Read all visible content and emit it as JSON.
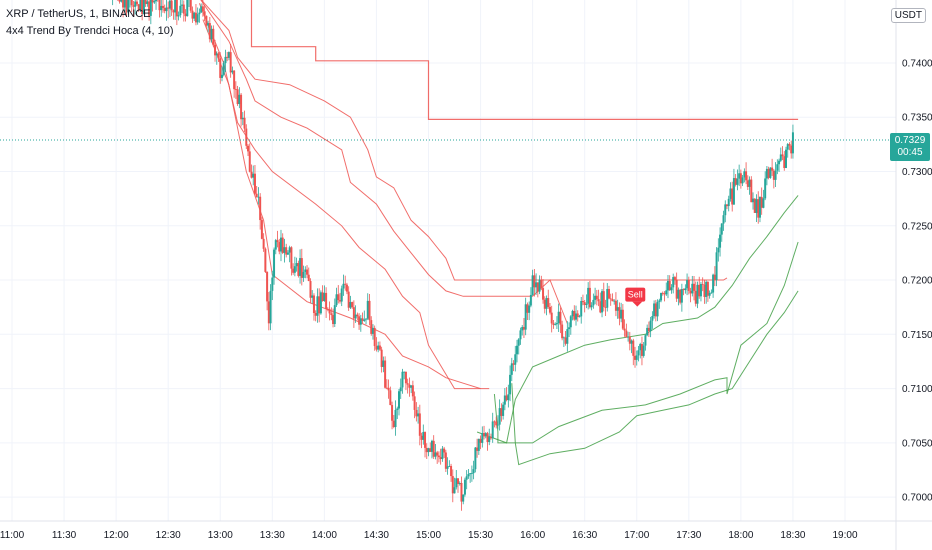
{
  "header": {
    "symbol_line": "XRP / TetherUS, 1, BINANCE",
    "indicator_line": "4x4 Trend By Trendci Hoca (4, 10)"
  },
  "unit_label": "USDT",
  "last_price": {
    "value": "0.7329",
    "countdown": "00:45"
  },
  "colors": {
    "up": "#26a69a",
    "down": "#ef5350",
    "resistance": "#ef5350",
    "support": "#43a047",
    "sell_badge": "#f23645",
    "last_price_line": "#26a69a"
  },
  "chart_data": {
    "type": "candlestick",
    "y_ticks": [
      "0.7000",
      "0.7050",
      "0.7100",
      "0.7150",
      "0.7200",
      "0.7250",
      "0.7300",
      "0.7350",
      "0.7400"
    ],
    "y_range": [
      0.6978,
      0.7458
    ],
    "x_ticks": [
      "11:00",
      "11:30",
      "12:00",
      "12:30",
      "13:00",
      "13:30",
      "14:00",
      "14:30",
      "15:00",
      "15:30",
      "16:00",
      "16:30",
      "17:00",
      "17:30",
      "18:00",
      "18:30",
      "19:00"
    ],
    "signal": {
      "label": "Sell",
      "time": "16:58",
      "price": 0.7182
    },
    "price_path": [
      [
        "11:58",
        0.746
      ],
      [
        "12:10",
        0.7455
      ],
      [
        "12:30",
        0.7452
      ],
      [
        "12:45",
        0.745
      ],
      [
        "12:55",
        0.743
      ],
      [
        "13:00",
        0.7395
      ],
      [
        "13:05",
        0.741
      ],
      [
        "13:10",
        0.737
      ],
      [
        "13:15",
        0.732
      ],
      [
        "13:20",
        0.729
      ],
      [
        "13:25",
        0.723
      ],
      [
        "13:28",
        0.716
      ],
      [
        "13:32",
        0.724
      ],
      [
        "13:40",
        0.722
      ],
      [
        "13:48",
        0.721
      ],
      [
        "13:55",
        0.7175
      ],
      [
        "14:00",
        0.7185
      ],
      [
        "14:05",
        0.7165
      ],
      [
        "14:10",
        0.7195
      ],
      [
        "14:15",
        0.718
      ],
      [
        "14:20",
        0.716
      ],
      [
        "14:25",
        0.717
      ],
      [
        "14:30",
        0.7145
      ],
      [
        "14:35",
        0.711
      ],
      [
        "14:40",
        0.707
      ],
      [
        "14:45",
        0.712
      ],
      [
        "14:50",
        0.71
      ],
      [
        "14:55",
        0.706
      ],
      [
        "15:00",
        0.705
      ],
      [
        "15:05",
        0.704
      ],
      [
        "15:10",
        0.703
      ],
      [
        "15:15",
        0.701
      ],
      [
        "15:20",
        0.7
      ],
      [
        "15:25",
        0.703
      ],
      [
        "15:30",
        0.705
      ],
      [
        "15:35",
        0.706
      ],
      [
        "15:40",
        0.7065
      ],
      [
        "15:45",
        0.7095
      ],
      [
        "15:50",
        0.713
      ],
      [
        "15:55",
        0.716
      ],
      [
        "16:00",
        0.72
      ],
      [
        "16:05",
        0.719
      ],
      [
        "16:10",
        0.717
      ],
      [
        "16:15",
        0.716
      ],
      [
        "16:20",
        0.715
      ],
      [
        "16:25",
        0.717
      ],
      [
        "16:30",
        0.718
      ],
      [
        "16:35",
        0.7185
      ],
      [
        "16:40",
        0.718
      ],
      [
        "16:45",
        0.719
      ],
      [
        "16:50",
        0.717
      ],
      [
        "16:55",
        0.715
      ],
      [
        "17:00",
        0.7125
      ],
      [
        "17:05",
        0.715
      ],
      [
        "17:10",
        0.717
      ],
      [
        "17:15",
        0.7185
      ],
      [
        "17:20",
        0.7195
      ],
      [
        "17:25",
        0.719
      ],
      [
        "17:30",
        0.7195
      ],
      [
        "17:35",
        0.7185
      ],
      [
        "17:40",
        0.719
      ],
      [
        "17:45",
        0.7205
      ],
      [
        "17:50",
        0.726
      ],
      [
        "17:55",
        0.728
      ],
      [
        "18:00",
        0.7295
      ],
      [
        "18:05",
        0.7285
      ],
      [
        "18:10",
        0.726
      ],
      [
        "18:15",
        0.7295
      ],
      [
        "18:20",
        0.73
      ],
      [
        "18:25",
        0.731
      ],
      [
        "18:30",
        0.7329
      ]
    ],
    "series": [
      {
        "values": [
          [
            "12:50",
            0.746
          ],
          [
            "13:18",
            0.746
          ],
          [
            "13:18",
            0.7415
          ],
          [
            "13:55",
            0.7415
          ],
          [
            "13:55",
            0.7402
          ],
          [
            "14:30",
            0.7402
          ],
          [
            "14:30",
            0.7402
          ],
          [
            "15:00",
            0.7402
          ],
          [
            "15:00",
            0.7348
          ],
          [
            "18:33",
            0.7348
          ]
        ]
      },
      {
        "values": [
          [
            "12:48",
            0.746
          ],
          [
            "13:05",
            0.743
          ],
          [
            "13:10",
            0.7405
          ],
          [
            "13:20",
            0.7385
          ],
          [
            "13:40",
            0.738
          ],
          [
            "14:00",
            0.7365
          ],
          [
            "14:15",
            0.735
          ],
          [
            "14:25",
            0.732
          ],
          [
            "14:30",
            0.7295
          ],
          [
            "14:40",
            0.7285
          ],
          [
            "14:50",
            0.7255
          ],
          [
            "15:00",
            0.724
          ],
          [
            "15:05",
            0.723
          ],
          [
            "15:10",
            0.722
          ],
          [
            "15:15",
            0.72
          ],
          [
            "16:00",
            0.72
          ],
          [
            "16:30",
            0.72
          ],
          [
            "17:00",
            0.72
          ],
          [
            "17:50",
            0.72
          ],
          [
            "17:52",
            0.7202
          ]
        ]
      },
      {
        "values": [
          [
            "12:48",
            0.746
          ],
          [
            "13:05",
            0.742
          ],
          [
            "13:15",
            0.7385
          ],
          [
            "13:20",
            0.7365
          ],
          [
            "13:35",
            0.735
          ],
          [
            "13:50",
            0.734
          ],
          [
            "14:10",
            0.732
          ],
          [
            "14:15",
            0.729
          ],
          [
            "14:30",
            0.727
          ],
          [
            "14:40",
            0.7245
          ],
          [
            "14:50",
            0.7225
          ],
          [
            "15:00",
            0.7205
          ],
          [
            "15:10",
            0.719
          ],
          [
            "15:20",
            0.7185
          ],
          [
            "16:00",
            0.7185
          ],
          [
            "16:10",
            0.72
          ],
          [
            "16:20",
            0.716
          ]
        ]
      },
      {
        "values": [
          [
            "12:48",
            0.7455
          ],
          [
            "13:02",
            0.74
          ],
          [
            "13:10",
            0.7345
          ],
          [
            "13:20",
            0.732
          ],
          [
            "13:30",
            0.73
          ],
          [
            "13:55",
            0.727
          ],
          [
            "14:10",
            0.725
          ],
          [
            "14:20",
            0.723
          ],
          [
            "14:35",
            0.721
          ],
          [
            "14:45",
            0.7185
          ],
          [
            "14:55",
            0.717
          ],
          [
            "15:00",
            0.714
          ],
          [
            "15:15",
            0.71
          ],
          [
            "15:35",
            0.71
          ]
        ]
      },
      {
        "values": [
          [
            "12:50",
            0.744
          ],
          [
            "13:05",
            0.738
          ],
          [
            "13:15",
            0.73
          ],
          [
            "13:25",
            0.7255
          ],
          [
            "13:30",
            0.7205
          ],
          [
            "13:50",
            0.718
          ],
          [
            "14:15",
            0.7165
          ],
          [
            "14:35",
            0.715
          ],
          [
            "14:45",
            0.713
          ],
          [
            "15:00",
            0.712
          ],
          [
            "15:10",
            0.711
          ],
          [
            "15:20",
            0.7105
          ],
          [
            "15:30",
            0.71
          ]
        ]
      },
      {
        "values": [
          [
            "15:28",
            0.706
          ],
          [
            "15:45",
            0.705
          ],
          [
            "15:50",
            0.709
          ],
          [
            "16:00",
            0.712
          ],
          [
            "16:15",
            0.713
          ],
          [
            "16:30",
            0.714
          ],
          [
            "16:45",
            0.7145
          ],
          [
            "17:05",
            0.715
          ],
          [
            "17:15",
            0.716
          ],
          [
            "17:35",
            0.7165
          ],
          [
            "17:45",
            0.7175
          ],
          [
            "17:55",
            0.7195
          ],
          [
            "18:05",
            0.722
          ],
          [
            "18:15",
            0.724
          ],
          [
            "18:25",
            0.7262
          ],
          [
            "18:33",
            0.7278
          ]
        ]
      },
      {
        "values": [
          [
            "15:38",
            0.7095
          ],
          [
            "15:40",
            0.706
          ],
          [
            "15:40",
            0.705
          ],
          [
            "16:00",
            0.705
          ],
          [
            "16:15",
            0.7065
          ],
          [
            "16:40",
            0.708
          ],
          [
            "17:05",
            0.7085
          ],
          [
            "17:25",
            0.7095
          ],
          [
            "17:45",
            0.7108
          ],
          [
            "17:52",
            0.711
          ],
          [
            "17:52",
            0.7095
          ],
          [
            "18:00",
            0.714
          ],
          [
            "18:15",
            0.716
          ],
          [
            "18:25",
            0.7195
          ],
          [
            "18:33",
            0.7235
          ]
        ]
      },
      {
        "values": [
          [
            "15:48",
            0.7105
          ],
          [
            "15:50",
            0.705
          ],
          [
            "15:52",
            0.703
          ],
          [
            "16:10",
            0.704
          ],
          [
            "16:30",
            0.7045
          ],
          [
            "16:50",
            0.706
          ],
          [
            "17:00",
            0.7075
          ],
          [
            "17:15",
            0.708
          ],
          [
            "17:30",
            0.7085
          ],
          [
            "17:45",
            0.7095
          ],
          [
            "17:55",
            0.71
          ],
          [
            "18:05",
            0.7125
          ],
          [
            "18:15",
            0.715
          ],
          [
            "18:25",
            0.717
          ],
          [
            "18:33",
            0.719
          ]
        ]
      }
    ]
  }
}
